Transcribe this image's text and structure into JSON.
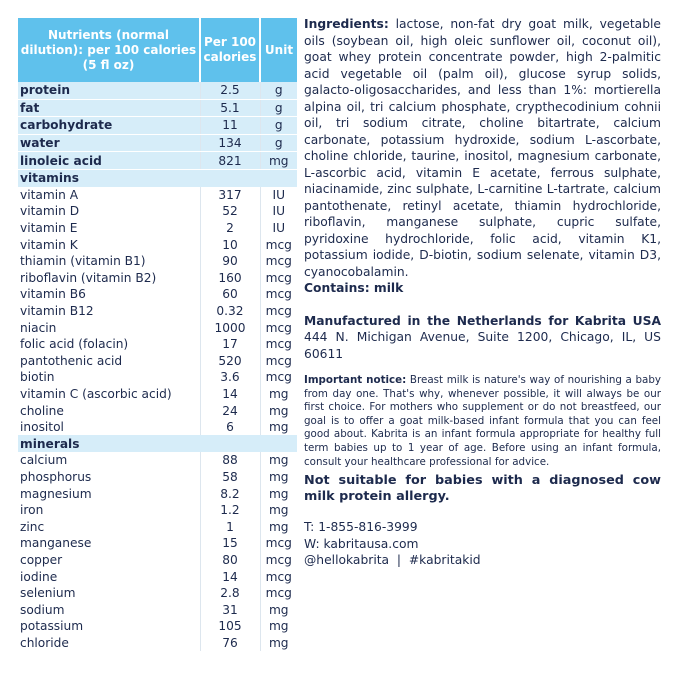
{
  "table": {
    "headers": [
      "Nutrients (normal dilution): per 100 calories (5 fl oz)",
      "Per 100 calories",
      "Unit"
    ],
    "macros": [
      [
        "protein",
        "2.5",
        "g"
      ],
      [
        "fat",
        "5.1",
        "g"
      ],
      [
        "carbohydrate",
        "11",
        "g"
      ],
      [
        "water",
        "134",
        "g"
      ],
      [
        "linoleic acid",
        "821",
        "mg"
      ]
    ],
    "vitamins_label": "vitamins",
    "vitamins": [
      [
        "vitamin A",
        "317",
        "IU"
      ],
      [
        "vitamin D",
        "52",
        "IU"
      ],
      [
        "vitamin E",
        "2",
        "IU"
      ],
      [
        "vitamin K",
        "10",
        "mcg"
      ],
      [
        "thiamin (vitamin B1)",
        "90",
        "mcg"
      ],
      [
        "riboflavin (vitamin B2)",
        "160",
        "mcg"
      ],
      [
        "vitamin B6",
        "60",
        "mcg"
      ],
      [
        "vitamin B12",
        "0.32",
        "mcg"
      ],
      [
        "niacin",
        "1000",
        "mcg"
      ],
      [
        "folic acid (folacin)",
        "17",
        "mcg"
      ],
      [
        "pantothenic acid",
        "520",
        "mcg"
      ],
      [
        "biotin",
        "3.6",
        "mcg"
      ],
      [
        "vitamin C (ascorbic acid)",
        "14",
        "mg"
      ],
      [
        "choline",
        "24",
        "mg"
      ],
      [
        "inositol",
        "6",
        "mg"
      ]
    ],
    "minerals_label": "minerals",
    "minerals": [
      [
        "calcium",
        "88",
        "mg"
      ],
      [
        "phosphorus",
        "58",
        "mg"
      ],
      [
        "magnesium",
        "8.2",
        "mg"
      ],
      [
        "iron",
        "1.2",
        "mg"
      ],
      [
        "zinc",
        "1",
        "mg"
      ],
      [
        "manganese",
        "15",
        "mcg"
      ],
      [
        "copper",
        "80",
        "mcg"
      ],
      [
        "iodine",
        "14",
        "mcg"
      ],
      [
        "selenium",
        "2.8",
        "mcg"
      ],
      [
        "sodium",
        "31",
        "mg"
      ],
      [
        "potassium",
        "105",
        "mg"
      ],
      [
        "chloride",
        "76",
        "mg"
      ]
    ]
  },
  "ingredients": {
    "label": "Ingredients:",
    "text": " lactose, non-fat dry goat milk, vegetable oils (soybean oil, high oleic sunflower oil, coconut oil), goat whey protein concentrate powder, high 2-palmitic acid vegetable oil (palm oil), glucose syrup solids, galacto-oligosaccharides, and less than 1%: mortierella alpina oil, tri calcium phosphate, crypthecodinium cohnii oil, tri sodium citrate, choline bitartrate, calcium carbonate, potassium hydroxide, sodium L-ascorbate, choline chloride, taurine, inositol, magnesium carbonate, L-ascorbic acid, vitamin E acetate, ferrous sulphate, niacinamide, zinc sulphate, L-carnitine L-tartrate, calcium pantothenate, retinyl acetate, thiamin hydrochloride, riboflavin, manganese sulphate, cupric sulfate, pyridoxine hydrochloride, folic acid, vitamin K1, potassium iodide, D-biotin, sodium selenate, vitamin D3, cyanocobalamin.",
    "contains": "Contains: milk"
  },
  "manufacturer": {
    "heading": "Manufactured in the Netherlands for Kabrita USA",
    "address": "444 N. Michigan Avenue, Suite 1200, Chicago, IL, US 60611"
  },
  "notice": {
    "label": "Important notice:",
    "text": " Breast milk is nature's way of nourishing a baby from day one. That's why, whenever possible, it will always be our first choice. For mothers who supplement or do not breastfeed, our goal is to offer a goat milk-based infant formula that you can feel good about. Kabrita is an infant formula appropriate for healthy full term babies up to 1 year of age. Before using an infant formula, consult your healthcare professional for advice.",
    "warning": "Not suitable for babies with a diagnosed cow milk protein allergy."
  },
  "contact": {
    "phone": "T: 1-855-816-3999",
    "web": "W: kabritausa.com",
    "social": "@hellokabrita  |  #kabritakid"
  },
  "colors": {
    "header": "#5fc1ec",
    "highlight": "#d6edf9",
    "text": "#1d2a4d"
  }
}
